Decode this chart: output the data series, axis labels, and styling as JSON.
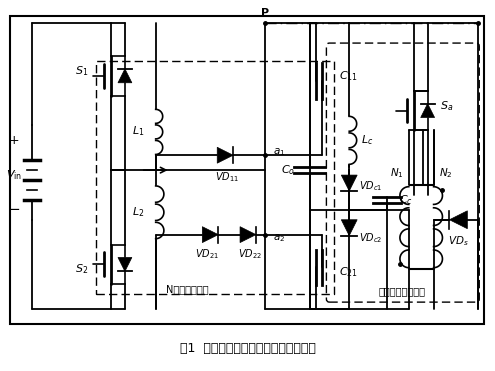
{
  "title": "图1  无源软开关能量有源回馈单元原理",
  "caption": "N缓冲吸收回路",
  "caption2": "能量有源回馈支路",
  "background_color": "#ffffff",
  "line_color": "#000000",
  "fig_width": 4.95,
  "fig_height": 3.71,
  "dpi": 100
}
